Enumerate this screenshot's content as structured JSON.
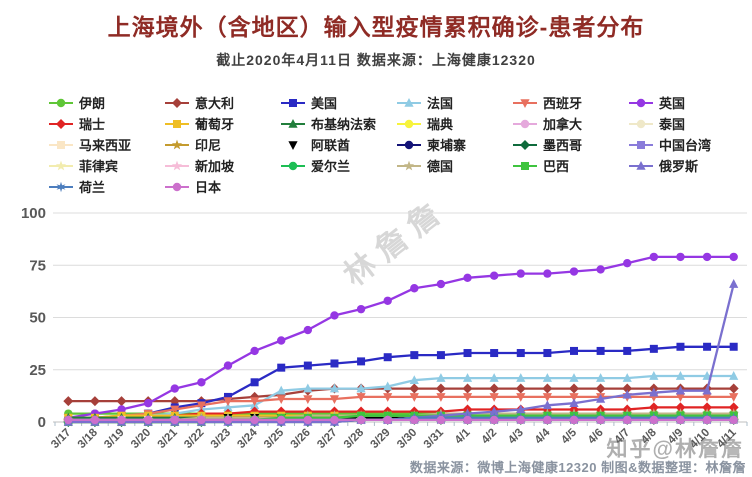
{
  "header": {
    "title": "上海境外（含地区）输入型疫情累积确诊-患者分布",
    "subtitle": "截止2020年4月11日 数据来源：上海健康12320"
  },
  "watermarks": {
    "center": "林詹詹",
    "corner": "知乎@林詹詹"
  },
  "footer": {
    "credit": "数据来源：微博上海健康12320 制图&数据整理：林詹詹"
  },
  "chart_data": {
    "type": "line",
    "title": "上海境外（含地区）输入型疫情累积确诊-患者分布",
    "xlabel": "",
    "ylabel": "",
    "ylim": [
      0,
      100
    ],
    "yticks": [
      0,
      25,
      50,
      75,
      100
    ],
    "grid": true,
    "legend_position": "top",
    "x": [
      "3/17",
      "3/18",
      "3/19",
      "3/20",
      "3/21",
      "3/22",
      "3/23",
      "3/24",
      "3/25",
      "3/26",
      "3/27",
      "3/28",
      "3/29",
      "3/30",
      "3/31",
      "4/1",
      "4/2",
      "4/3",
      "4/4",
      "4/5",
      "4/6",
      "4/7",
      "4/8",
      "4/9",
      "4/10",
      "4/11"
    ],
    "series": [
      {
        "name": "伊朗",
        "color": "#5FC637",
        "marker": "circle",
        "values": [
          4,
          4,
          4,
          4,
          4,
          4,
          4,
          4,
          4,
          4,
          4,
          4,
          4,
          4,
          4,
          4,
          4,
          4,
          4,
          4,
          4,
          4,
          4,
          4,
          4,
          4
        ]
      },
      {
        "name": "意大利",
        "color": "#A6403A",
        "marker": "diamond",
        "values": [
          10,
          10,
          10,
          10,
          10,
          10,
          11,
          12,
          13,
          15,
          16,
          16,
          16,
          16,
          16,
          16,
          16,
          16,
          16,
          16,
          16,
          16,
          16,
          16,
          16,
          16
        ]
      },
      {
        "name": "美国",
        "color": "#2A2AC4",
        "marker": "square",
        "values": [
          1,
          1,
          2,
          4,
          7,
          9,
          12,
          19,
          26,
          27,
          28,
          29,
          31,
          32,
          32,
          33,
          33,
          33,
          33,
          34,
          34,
          34,
          35,
          36,
          36,
          36
        ]
      },
      {
        "name": "法国",
        "color": "#8FCBE4",
        "marker": "triangle",
        "values": [
          1,
          1,
          2,
          3,
          4,
          6,
          7,
          8,
          15,
          16,
          16,
          16,
          17,
          20,
          21,
          21,
          21,
          21,
          21,
          21,
          21,
          21,
          22,
          22,
          22,
          22
        ]
      },
      {
        "name": "西班牙",
        "color": "#E8705F",
        "marker": "triangle-down",
        "values": [
          2,
          2,
          3,
          4,
          6,
          8,
          10,
          10,
          11,
          11,
          11,
          12,
          12,
          12,
          12,
          12,
          12,
          12,
          12,
          12,
          12,
          12,
          12,
          12,
          12,
          12
        ]
      },
      {
        "name": "英国",
        "color": "#9537E3",
        "marker": "circle",
        "values": [
          2,
          4,
          6,
          9,
          16,
          19,
          27,
          34,
          39,
          44,
          51,
          54,
          58,
          64,
          66,
          69,
          70,
          71,
          71,
          72,
          73,
          76,
          79,
          79,
          79,
          79
        ]
      },
      {
        "name": "瑞士",
        "color": "#E02424",
        "marker": "diamond",
        "values": [
          1,
          1,
          2,
          2,
          3,
          4,
          4,
          5,
          5,
          5,
          5,
          5,
          5,
          5,
          5,
          6,
          6,
          6,
          6,
          6,
          6,
          6,
          7,
          7,
          7,
          7
        ]
      },
      {
        "name": "葡萄牙",
        "color": "#EFBE24",
        "marker": "square",
        "values": [
          2,
          2,
          3,
          3,
          3,
          3,
          3,
          3,
          3,
          3,
          3,
          3,
          3,
          3,
          3,
          3,
          3,
          3,
          3,
          3,
          3,
          3,
          3,
          3,
          3,
          3
        ]
      },
      {
        "name": "布基纳法索",
        "color": "#217E3B",
        "marker": "triangle",
        "values": [
          2,
          2,
          2,
          2,
          2,
          2,
          2,
          2,
          2,
          2,
          2,
          2,
          2,
          2,
          2,
          2,
          2,
          2,
          2,
          2,
          2,
          2,
          2,
          2,
          2,
          2
        ]
      },
      {
        "name": "瑞典",
        "color": "#F7F33C",
        "marker": "circle",
        "values": [
          1,
          1,
          1,
          1,
          1,
          1,
          2,
          2,
          2,
          2,
          2,
          2,
          2,
          2,
          2,
          2,
          2,
          2,
          2,
          2,
          2,
          2,
          2,
          2,
          2,
          2
        ]
      },
      {
        "name": "加拿大",
        "color": "#E5A9DC",
        "marker": "circle",
        "values": [
          0,
          0,
          0,
          0,
          1,
          1,
          1,
          1,
          1,
          1,
          1,
          2,
          2,
          2,
          2,
          2,
          2,
          2,
          2,
          2,
          2,
          2,
          2,
          2,
          2,
          2
        ]
      },
      {
        "name": "泰国",
        "color": "#EFE8C8",
        "marker": "circle",
        "values": [
          1,
          1,
          1,
          1,
          1,
          1,
          1,
          1,
          1,
          1,
          1,
          1,
          1,
          1,
          1,
          1,
          1,
          1,
          1,
          1,
          1,
          1,
          1,
          1,
          1,
          1
        ]
      },
      {
        "name": "马来西亚",
        "color": "#FAE6C5",
        "marker": "square",
        "values": [
          0,
          0,
          1,
          1,
          1,
          1,
          1,
          1,
          1,
          1,
          1,
          1,
          1,
          1,
          1,
          1,
          1,
          1,
          1,
          1,
          1,
          1,
          1,
          1,
          1,
          1
        ]
      },
      {
        "name": "印尼",
        "color": "#C49B2E",
        "marker": "star",
        "values": [
          0,
          0,
          0,
          0,
          0,
          0,
          1,
          1,
          1,
          1,
          1,
          1,
          1,
          1,
          1,
          1,
          1,
          1,
          1,
          1,
          1,
          1,
          1,
          1,
          1,
          1
        ]
      },
      {
        "name": "阿联酋",
        "color": "#000000",
        "marker": "triangle-down",
        "values": [
          0,
          0,
          0,
          0,
          0,
          1,
          2,
          2,
          2,
          2,
          2,
          2,
          2,
          3,
          3,
          3,
          3,
          3,
          3,
          3,
          3,
          3,
          3,
          3,
          3,
          3
        ]
      },
      {
        "name": "柬埔寨",
        "color": "#131377",
        "marker": "circle",
        "values": [
          1,
          1,
          1,
          1,
          1,
          1,
          1,
          1,
          1,
          1,
          1,
          1,
          1,
          1,
          1,
          1,
          1,
          1,
          1,
          1,
          1,
          1,
          1,
          1,
          1,
          1
        ]
      },
      {
        "name": "墨西哥",
        "color": "#0F6B3C",
        "marker": "diamond",
        "values": [
          0,
          0,
          0,
          0,
          0,
          0,
          0,
          0,
          0,
          0,
          0,
          1,
          1,
          1,
          1,
          1,
          1,
          1,
          1,
          1,
          1,
          1,
          1,
          1,
          1,
          1
        ]
      },
      {
        "name": "中国台湾",
        "color": "#8A7CDA",
        "marker": "square",
        "values": [
          0,
          0,
          0,
          0,
          1,
          1,
          1,
          1,
          1,
          1,
          1,
          1,
          1,
          1,
          1,
          1,
          1,
          1,
          1,
          1,
          1,
          1,
          1,
          1,
          1,
          1
        ]
      },
      {
        "name": "菲律宾",
        "color": "#F2ECAE",
        "marker": "star",
        "values": [
          0,
          0,
          0,
          0,
          0,
          0,
          1,
          1,
          1,
          1,
          1,
          1,
          1,
          2,
          2,
          2,
          2,
          2,
          2,
          2,
          2,
          2,
          2,
          2,
          2,
          2
        ]
      },
      {
        "name": "新加坡",
        "color": "#F6BDD8",
        "marker": "star",
        "values": [
          0,
          0,
          0,
          1,
          1,
          1,
          1,
          1,
          1,
          1,
          1,
          1,
          1,
          1,
          1,
          1,
          1,
          1,
          1,
          1,
          1,
          1,
          1,
          1,
          1,
          1
        ]
      },
      {
        "name": "爱尔兰",
        "color": "#1DBE54",
        "marker": "circle",
        "values": [
          0,
          0,
          0,
          0,
          0,
          0,
          0,
          1,
          1,
          1,
          1,
          1,
          1,
          1,
          1,
          1,
          1,
          1,
          1,
          1,
          1,
          1,
          1,
          1,
          1,
          1
        ]
      },
      {
        "name": "德国",
        "color": "#C2B687",
        "marker": "star",
        "values": [
          1,
          1,
          1,
          1,
          1,
          2,
          2,
          2,
          2,
          3,
          3,
          3,
          3,
          3,
          4,
          4,
          4,
          4,
          4,
          4,
          4,
          4,
          4,
          4,
          4,
          4
        ]
      },
      {
        "name": "巴西",
        "color": "#3FC43F",
        "marker": "square",
        "values": [
          0,
          0,
          0,
          0,
          0,
          0,
          1,
          1,
          2,
          2,
          2,
          3,
          3,
          3,
          3,
          3,
          3,
          3,
          3,
          3,
          3,
          3,
          3,
          3,
          3,
          3
        ]
      },
      {
        "name": "俄罗斯",
        "color": "#7A70CF",
        "marker": "triangle",
        "values": [
          0,
          0,
          0,
          0,
          0,
          0,
          0,
          0,
          0,
          0,
          0,
          1,
          1,
          2,
          3,
          4,
          5,
          6,
          8,
          9,
          11,
          13,
          14,
          15,
          15,
          66
        ]
      },
      {
        "name": "荷兰",
        "color": "#4D7EBE",
        "marker": "star6",
        "values": [
          1,
          1,
          1,
          1,
          1,
          1,
          1,
          1,
          1,
          1,
          1,
          1,
          1,
          2,
          2,
          2,
          2,
          2,
          2,
          2,
          2,
          2,
          2,
          2,
          2,
          2
        ]
      },
      {
        "name": "日本",
        "color": "#CC70CC",
        "marker": "circle",
        "values": [
          1,
          1,
          1,
          1,
          1,
          1,
          1,
          1,
          1,
          1,
          1,
          1,
          1,
          1,
          1,
          1,
          1,
          1,
          1,
          1,
          1,
          1,
          1,
          1,
          1,
          1
        ]
      }
    ]
  }
}
